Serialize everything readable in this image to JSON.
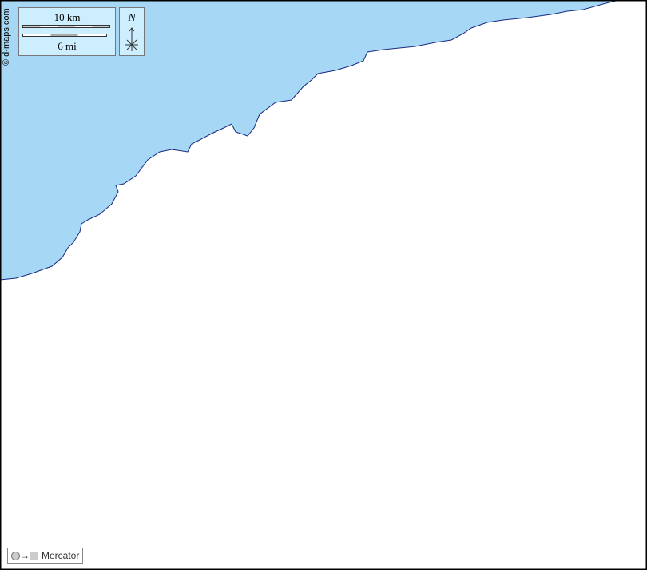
{
  "credit": "© d-maps.com",
  "scale": {
    "km_label": "10 km",
    "mi_label": "6 mi"
  },
  "north": {
    "label": "N"
  },
  "projection": {
    "arrow": "→",
    "label": "Mercator"
  },
  "colors": {
    "water": "#a6d8f5",
    "land": "#ffffff",
    "coast": "#1a2a80",
    "scale_box": "#cdeefe"
  }
}
